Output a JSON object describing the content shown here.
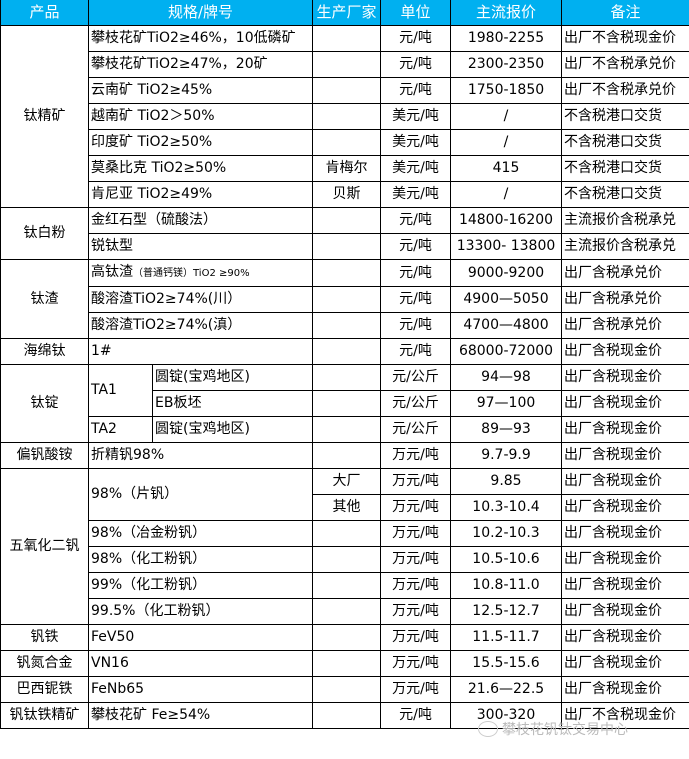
{
  "header": [
    "产品",
    "规格/牌号",
    "生产厂家",
    "单位",
    "主流报价",
    "备注"
  ],
  "header_color": "#00B0F0",
  "groups": [
    {
      "product": "钛精矿",
      "rows": [
        {
          "spec": "攀枝花矿TiO2≥46%，10低磷矿",
          "maker": "",
          "unit": "元/吨",
          "price": "1980-2255",
          "note": "出厂不含税现金价"
        },
        {
          "spec": "攀枝花矿TiO2≥47%，20矿",
          "maker": "",
          "unit": "元/吨",
          "price": "2300-2350",
          "note": "出厂不含税承兑价"
        },
        {
          "spec": "云南矿 TiO2≥45%",
          "maker": "",
          "unit": "元/吨",
          "price": "1750-1850",
          "note": "出厂不含税承兑价"
        },
        {
          "spec": "越南矿 TiO2＞50%",
          "maker": "",
          "unit": "美元/吨",
          "price": "/",
          "note": "不含税港口交货"
        },
        {
          "spec": "印度矿 TiO2≥50%",
          "maker": "",
          "unit": "美元/吨",
          "price": "/",
          "note": "不含税港口交货"
        },
        {
          "spec": "莫桑比克 TiO2≥50%",
          "maker": "肯梅尔",
          "unit": "美元/吨",
          "price": "415",
          "note": "不含税港口交货"
        },
        {
          "spec": "肯尼亚 TiO2≥49%",
          "maker": "贝斯",
          "unit": "美元/吨",
          "price": "/",
          "note": "不含税港口交货"
        }
      ]
    },
    {
      "product": "钛白粉",
      "rows": [
        {
          "spec": "金红石型（硫酸法）",
          "maker": "",
          "unit": "元/吨",
          "price": "14800-16200",
          "note": "主流报价含税承兑"
        },
        {
          "spec": "锐钛型",
          "maker": "",
          "unit": "元/吨",
          "price": "13300- 13800",
          "note": "主流报价含税承兑"
        }
      ]
    },
    {
      "product": "钛渣",
      "rows": [
        {
          "spec": "高钛渣",
          "spec_small": "（普通钙镁）TiO2 ≥90%",
          "maker": "",
          "unit": "元/吨",
          "price": "9000-9200",
          "note": "出厂含税承兑价"
        },
        {
          "spec": "酸溶渣TiO2≥74%(川）",
          "maker": "",
          "unit": "元/吨",
          "price": "4900—5050",
          "note": "出厂含税承兑价"
        },
        {
          "spec": "酸溶渣TiO2≥74%(滇）",
          "maker": "",
          "unit": "元/吨",
          "price": "4700—4800",
          "note": "出厂含税承兑价"
        }
      ]
    },
    {
      "product": "海绵钛",
      "rows": [
        {
          "spec": "1#",
          "maker": "",
          "unit": "元/吨",
          "price": "68000-72000",
          "note": "出厂含税现金价"
        }
      ]
    },
    {
      "product": "钛锭",
      "has_sub": true,
      "rows": [
        {
          "spec": "TA1",
          "sub": "圆锭(宝鸡地区)",
          "maker": "",
          "unit": "元/公斤",
          "price": "94—98",
          "note": "出厂含税现金价"
        },
        {
          "sub": "EB板坯",
          "maker": "",
          "unit": "元/公斤",
          "price": "97—100",
          "note": "出厂含税现金价"
        },
        {
          "spec": "TA2",
          "sub": "圆锭(宝鸡地区)",
          "maker": "",
          "unit": "元/公斤",
          "price": "89—93",
          "note": "出厂含税现金价"
        }
      ]
    },
    {
      "product": "偏钒酸铵",
      "rows": [
        {
          "spec": "折精钒98%",
          "maker": "",
          "unit": "万元/吨",
          "price": "9.7-9.9",
          "note": "出厂含税现金价"
        }
      ]
    },
    {
      "product": "五氧化二钒",
      "rows": [
        {
          "spec": "98%（片钒）",
          "maker": "大厂",
          "unit": "万元/吨",
          "price": "9.85",
          "note": "出厂含税现金价"
        },
        {
          "maker": "其他",
          "unit": "万元/吨",
          "price": "10.3-10.4",
          "note": "出厂含税现金价"
        },
        {
          "spec": "98%（冶金粉钒）",
          "maker": "",
          "unit": "万元/吨",
          "price": "10.2-10.3",
          "note": "出厂含税现金价"
        },
        {
          "spec": "98%（化工粉钒）",
          "maker": "",
          "unit": "万元/吨",
          "price": "10.5-10.6",
          "note": "出厂含税现金价"
        },
        {
          "spec": "99%（化工粉钒）",
          "maker": "",
          "unit": "万元/吨",
          "price": "10.8-11.0",
          "note": "出厂含税现金价"
        },
        {
          "spec": "99.5%（化工粉钒）",
          "maker": "",
          "unit": "万元/吨",
          "price": "12.5-12.7",
          "note": "出厂含税现金价"
        }
      ]
    },
    {
      "product": "钒铁",
      "rows": [
        {
          "spec": "FeV50",
          "maker": "",
          "unit": "万元/吨",
          "price": "11.5-11.7",
          "note": "出厂含税现金价"
        }
      ]
    },
    {
      "product": "钒氮合金",
      "rows": [
        {
          "spec": "VN16",
          "maker": "",
          "unit": "万元/吨",
          "price": "15.5-15.6",
          "note": "出厂含税现金价"
        }
      ]
    },
    {
      "product": "巴西铌铁",
      "rows": [
        {
          "spec": "FeNb65",
          "maker": "",
          "unit": "万元/吨",
          "price": "21.6—22.5",
          "note": "出厂含税现金价"
        }
      ]
    },
    {
      "product": "钒钛铁精矿",
      "rows": [
        {
          "spec": "攀枝花矿 Fe≥54%",
          "maker": "",
          "unit": "元/吨",
          "price": "300-320",
          "note": "出厂不含税现金价"
        }
      ]
    }
  ],
  "watermark": {
    "icon": "wechat-icon",
    "text": "攀枝花钒钛交易中心"
  }
}
